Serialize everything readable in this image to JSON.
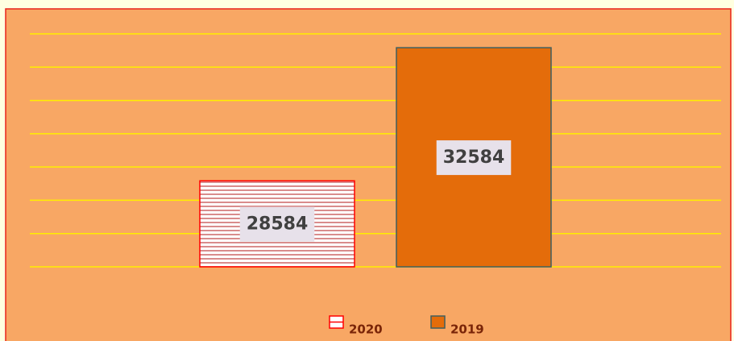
{
  "chart_data": {
    "type": "bar",
    "series": [
      {
        "name": "2020",
        "values": [
          28584
        ],
        "color": "#ff0000",
        "fill": "hatch",
        "hatch_color": "#d98c8c"
      },
      {
        "name": "2019",
        "values": [
          32584
        ],
        "color": "#e46c0a",
        "fill": "solid",
        "edge_color": "#3f5f5f"
      }
    ],
    "ylim": [
      26000,
      33000
    ],
    "yticks": [
      26000,
      27000,
      28000,
      29000,
      30000,
      31000,
      32000,
      33000
    ],
    "grid": true,
    "grid_color": "#ffee00",
    "legend": "bottom"
  }
}
